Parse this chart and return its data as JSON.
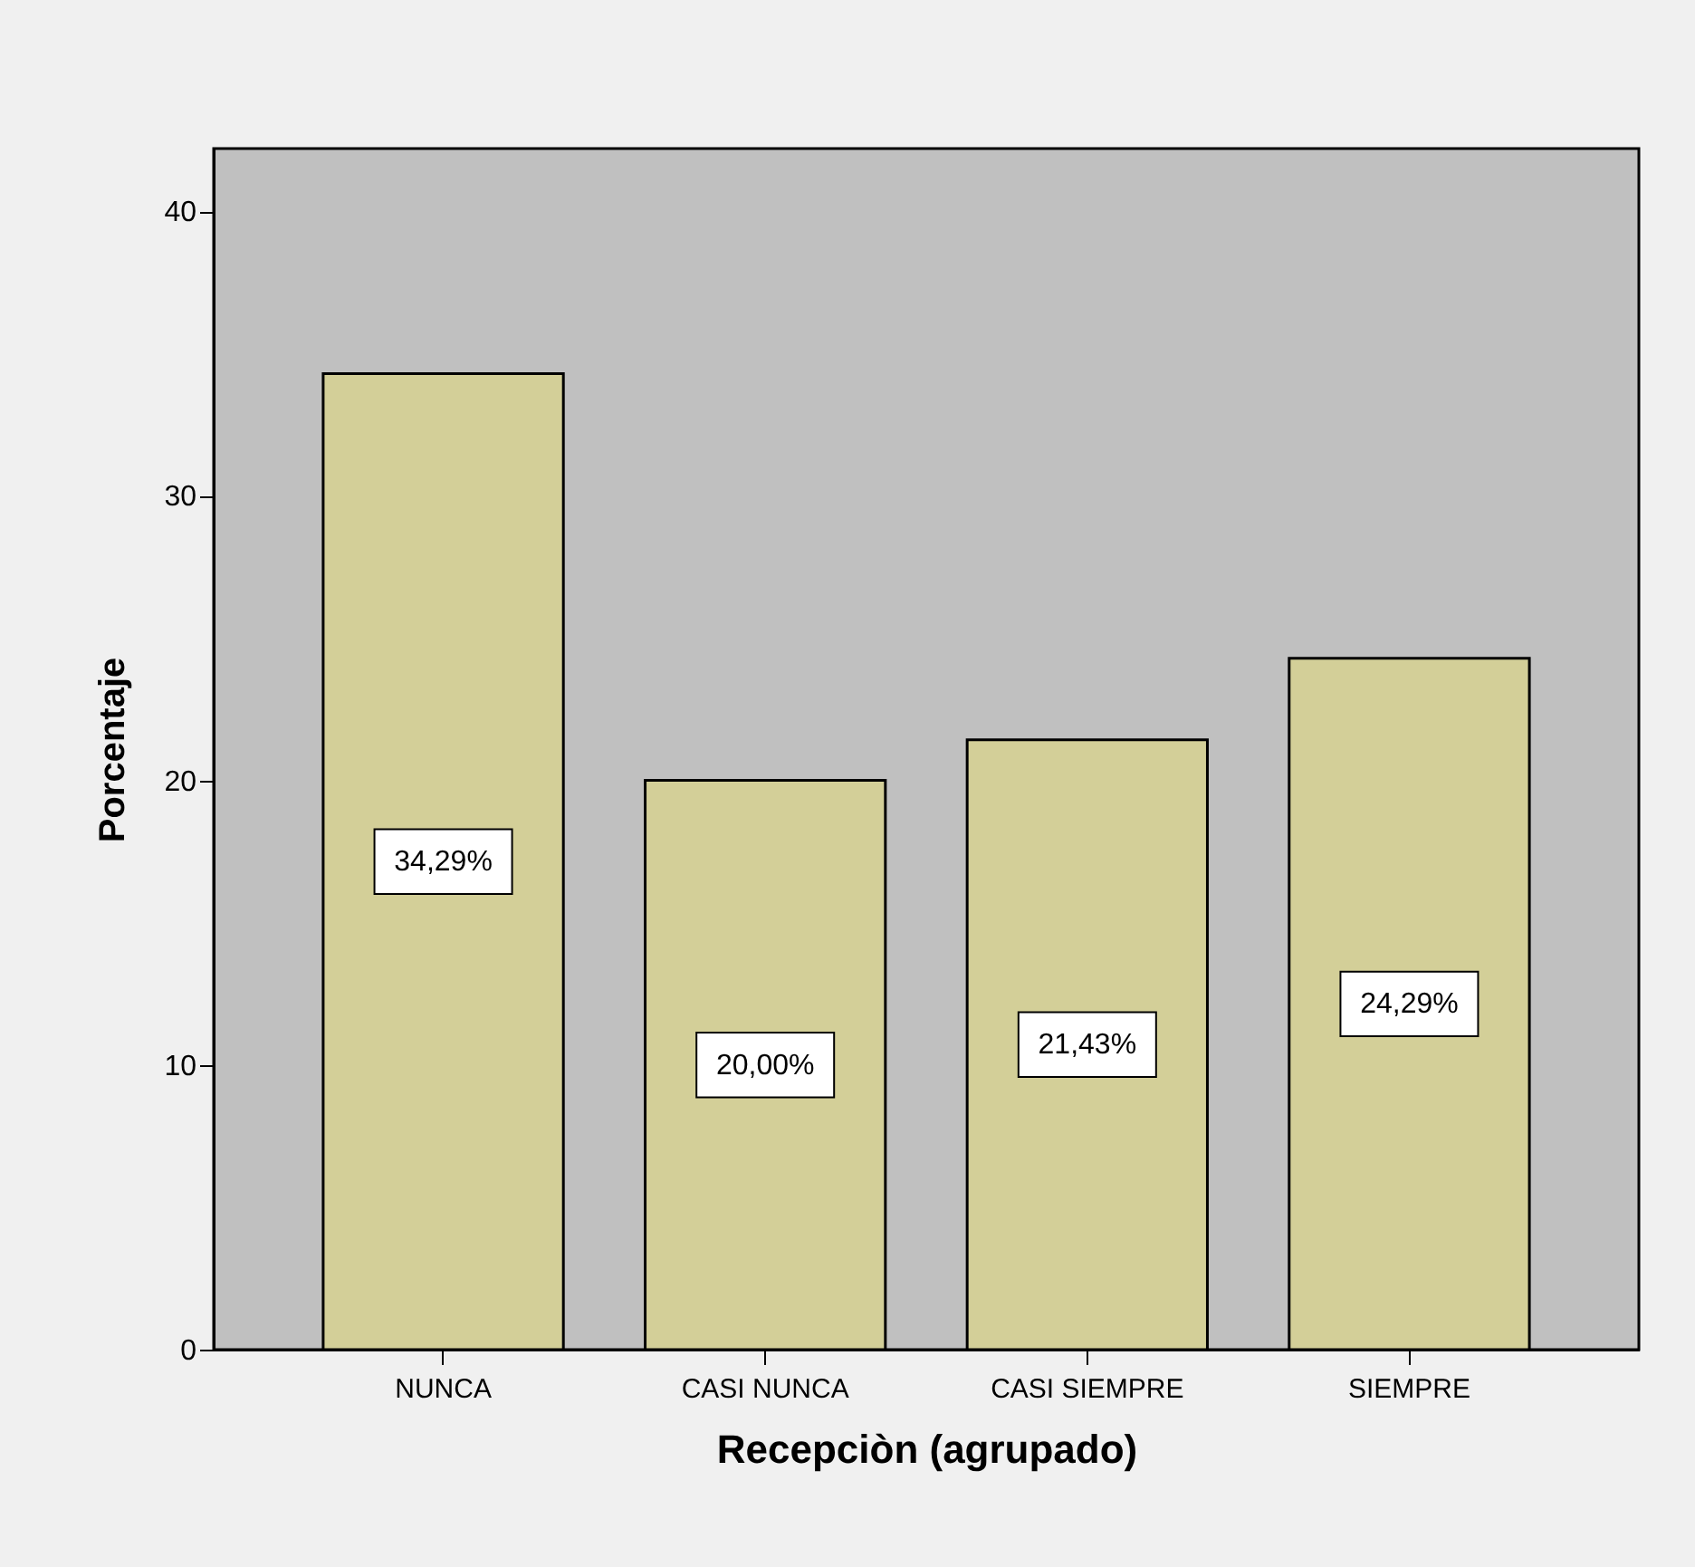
{
  "chart_data": {
    "type": "bar",
    "xlabel": "Recepciòn (agrupado)",
    "ylabel": "Porcentaje",
    "categories": [
      "NUNCA",
      "CASI NUNCA",
      "CASI SIEMPRE",
      "SIEMPRE"
    ],
    "values": [
      34.29,
      20.0,
      21.43,
      24.29
    ],
    "color": "#d3cf98",
    "value_labels": [
      "34,29%",
      "20,00%",
      "21,43%",
      "24,29%"
    ],
    "ylim": [
      0,
      42.2
    ],
    "yticks": [
      0,
      10,
      20,
      30,
      40
    ],
    "grid": false
  }
}
